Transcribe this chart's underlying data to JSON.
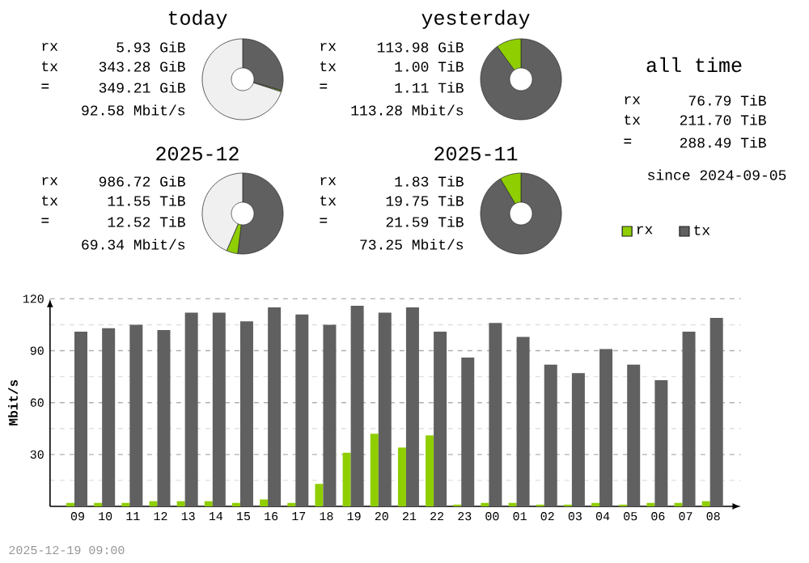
{
  "chart_data": [
    {
      "type": "donut",
      "title": "today",
      "categories": [
        null,
        null,
        null
      ],
      "values": [
        29.5,
        0.5,
        70
      ],
      "colors": [
        "#606060",
        "#8fce00",
        "#f0f0f0"
      ],
      "annotations": [
        "rx",
        "5.93 GiB",
        "tx",
        "343.28 GiB",
        "=",
        "349.21 GiB",
        "92.58 Mbit/s"
      ]
    },
    {
      "type": "donut",
      "title": "yesterday",
      "categories": [
        null,
        null
      ],
      "values": [
        90,
        10
      ],
      "colors": [
        "#606060",
        "#8fce00"
      ],
      "annotations": [
        "rx",
        "113.98 GiB",
        "tx",
        "1.00 TiB",
        "=",
        "1.11 TiB",
        "113.28 Mbit/s"
      ]
    },
    {
      "type": "donut",
      "title": "2025-12",
      "categories": [
        null,
        null,
        null
      ],
      "values": [
        52,
        4.5,
        43.5
      ],
      "colors": [
        "#606060",
        "#8fce00",
        "#f0f0f0"
      ],
      "annotations": [
        "rx",
        "986.72 GiB",
        "tx",
        "11.55 TiB",
        "=",
        "12.52 TiB",
        "69.34 Mbit/s"
      ]
    },
    {
      "type": "donut",
      "title": "2025-11",
      "categories": [
        null,
        null
      ],
      "values": [
        91.5,
        8.5
      ],
      "colors": [
        "#606060",
        "#8fce00"
      ],
      "annotations": [
        "rx",
        "1.83 TiB",
        "tx",
        "19.75 TiB",
        "=",
        "21.59 TiB",
        "73.25 Mbit/s"
      ]
    },
    {
      "type": "other",
      "title": "all time",
      "annotations": [
        "rx",
        "76.79 TiB",
        "tx",
        "211.70 TiB",
        "=",
        "288.49 TiB",
        "since 2024-09-05"
      ]
    },
    {
      "type": "bar",
      "ylabel": "Mbit/s",
      "categories": [
        "09",
        "10",
        "11",
        "12",
        "13",
        "14",
        "15",
        "16",
        "17",
        "18",
        "19",
        "20",
        "21",
        "22",
        "23",
        "00",
        "01",
        "02",
        "03",
        "04",
        "05",
        "06",
        "07",
        "08"
      ],
      "series": [
        {
          "name": "rx",
          "color": "#8fce00",
          "values": [
            2,
            2,
            2,
            3,
            3,
            3,
            2,
            4,
            2,
            13,
            31,
            42,
            34,
            41,
            1,
            2,
            2,
            1,
            1,
            2,
            1,
            2,
            2,
            3
          ]
        },
        {
          "name": "tx",
          "color": "#606060",
          "values": [
            101,
            103,
            105,
            102,
            112,
            112,
            107,
            115,
            111,
            105,
            116,
            112,
            115,
            101,
            86,
            106,
            98,
            82,
            77,
            91,
            82,
            73,
            101,
            109
          ]
        }
      ],
      "ylim": [
        0,
        120
      ],
      "yticks": [
        {
          "value": 15,
          "label": null
        },
        30,
        {
          "value": 45,
          "label": null
        },
        60,
        {
          "value": 75,
          "label": null
        },
        90,
        {
          "value": 105,
          "label": null
        },
        120
      ],
      "grid": "y",
      "legend": "top right",
      "annotations": [
        "2025-12-19 09:00"
      ]
    }
  ]
}
